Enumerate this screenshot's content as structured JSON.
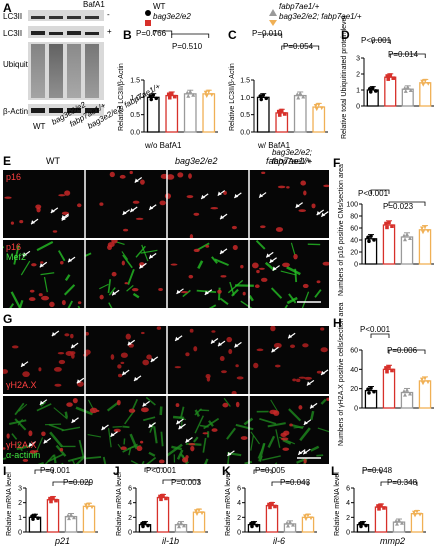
{
  "panelA": {
    "label": "A",
    "baf1": "BafA1",
    "minus": "-",
    "plus": "+",
    "lc3_1": "LC3II",
    "lc3_2": "LC3II",
    "ubiquitin": "Ubiquitin",
    "actin": "β-Actin",
    "lanes": [
      "WT",
      "bag3e2/e2",
      "fabp7ae1/+",
      "bag3e2/e2; fabp7ae1/+"
    ]
  },
  "legend": {
    "wt": "WT",
    "bag3": "bag3e2/e2",
    "fabp": "fabp7ae1/+",
    "double": "bag3e2/e2; fabp7ae1/+",
    "colors": {
      "wt": "#000000",
      "bag3": "#d7302a",
      "fabp": "#9a9a9a",
      "double": "#f0b055"
    }
  },
  "panelB": {
    "label": "B",
    "ylabel": "Relative LC3II/β-Actin",
    "p1": "P=0.766",
    "p2": "P=0.510",
    "xlabel": "w/o BafA1"
  },
  "panelC": {
    "label": "C",
    "ylabel": "Relative LC3II/β-Actin",
    "p1": "P=0.010",
    "p2": "P=0.054",
    "xlabel": "w/ BafA1"
  },
  "panelD": {
    "label": "D",
    "ylabel": "Relative total Ubiquitinated protein level",
    "p1": "P<0.001",
    "p2": "P=0.014"
  },
  "panelE": {
    "label": "E",
    "cols": [
      "WT",
      "bag3e2/e2",
      "fabp7ae1/+",
      "bag3e2/e2; fabp7ae1/+"
    ],
    "row1": "p16",
    "row2a": "p16",
    "row2b": "Mef2"
  },
  "panelF": {
    "label": "F",
    "ylabel": "Numbers of p16 positive CMs/section area",
    "p1": "P<0.001",
    "p2": "P=0.023"
  },
  "panelG": {
    "label": "G",
    "row1": "γH2A.X",
    "row2a": "γH2A.X",
    "row2b": "α-actinin"
  },
  "panelH": {
    "label": "H",
    "ylabel": "Numbers of γH2A.X positive cells/section area",
    "p1": "P<0.001",
    "p2": "P=0.006"
  },
  "panelI": {
    "label": "I",
    "ylabel": "Relative mRNA level",
    "gene": "p21",
    "p1": "P=0.001",
    "p2": "P=0.029"
  },
  "panelJ": {
    "label": "J",
    "ylabel": "Relative mRNA level",
    "gene": "il-1b",
    "p1": "P<0.001",
    "p2": "P=0.003"
  },
  "panelK": {
    "label": "K",
    "ylabel": "Relative mRNA level",
    "gene": "il-6",
    "p1": "P=0.005",
    "p2": "P=0.043"
  },
  "panelL": {
    "label": "L",
    "ylabel": "Relative mRNA level",
    "gene": "mmp2",
    "p1": "P=0.048",
    "p2": "P=0.348"
  },
  "chart_data": [
    {
      "id": "B",
      "type": "bar",
      "categories": [
        "WT",
        "bag3e2/e2",
        "fabp7ae1/+",
        "bag3e2/e2; fabp7ae1/+"
      ],
      "values": [
        1.0,
        1.05,
        1.1,
        1.1
      ],
      "ylim": [
        0,
        1.5
      ],
      "yticks": [
        "0.0",
        "0.5",
        "1.0",
        "1.5"
      ]
    },
    {
      "id": "C",
      "type": "bar",
      "categories": [
        "WT",
        "bag3e2/e2",
        "fabp7ae1/+",
        "bag3e2/e2; fabp7ae1/+"
      ],
      "values": [
        1.0,
        0.55,
        1.05,
        0.72
      ],
      "ylim": [
        0,
        1.5
      ],
      "yticks": [
        "0.0",
        "0.5",
        "1.0",
        "1.5"
      ]
    },
    {
      "id": "D",
      "type": "bar",
      "categories": [
        "WT",
        "bag3e2/e2",
        "fabp7ae1/+",
        "bag3e2/e2; fabp7ae1/+"
      ],
      "values": [
        1.0,
        1.8,
        1.05,
        1.45
      ],
      "ylim": [
        0,
        3
      ],
      "yticks": [
        "0",
        "1",
        "2",
        "3"
      ]
    },
    {
      "id": "F",
      "type": "bar",
      "categories": [
        "WT",
        "bag3e2/e2",
        "fabp7ae1/+",
        "bag3e2/e2; fabp7ae1/+"
      ],
      "values": [
        42,
        65,
        45,
        57
      ],
      "ylim": [
        0,
        100
      ],
      "yticks": [
        "0",
        "20",
        "40",
        "60",
        "80",
        "100"
      ]
    },
    {
      "id": "H",
      "type": "bar",
      "categories": [
        "WT",
        "bag3e2/e2",
        "fabp7ae1/+",
        "bag3e2/e2; fabp7ae1/+"
      ],
      "values": [
        18,
        40,
        16,
        28
      ],
      "ylim": [
        0,
        60
      ],
      "yticks": [
        "0",
        "20",
        "40",
        "60"
      ]
    },
    {
      "id": "I",
      "type": "bar",
      "categories": [
        "WT",
        "bag3e2/e2",
        "fabp7ae1/+",
        "bag3e2/e2; fabp7ae1/+"
      ],
      "values": [
        1.0,
        2.2,
        1.05,
        1.75
      ],
      "ylim": [
        0,
        3
      ],
      "yticks": [
        "0",
        "1",
        "2",
        "3"
      ]
    },
    {
      "id": "J",
      "type": "bar",
      "categories": [
        "WT",
        "bag3e2/e2",
        "fabp7ae1/+",
        "bag3e2/e2; fabp7ae1/+"
      ],
      "values": [
        1.0,
        4.7,
        1.0,
        2.7
      ],
      "ylim": [
        0,
        6
      ],
      "yticks": [
        "0",
        "2",
        "4",
        "6"
      ]
    },
    {
      "id": "K",
      "type": "bar",
      "categories": [
        "WT",
        "bag3e2/e2",
        "fabp7ae1/+",
        "bag3e2/e2; fabp7ae1/+"
      ],
      "values": [
        1.0,
        3.6,
        1.1,
        2.0
      ],
      "ylim": [
        0,
        6
      ],
      "yticks": [
        "0",
        "2",
        "4",
        "6"
      ]
    },
    {
      "id": "L",
      "type": "bar",
      "categories": [
        "WT",
        "bag3e2/e2",
        "fabp7ae1/+",
        "bag3e2/e2; fabp7ae1/+"
      ],
      "values": [
        1.0,
        3.4,
        1.35,
        2.5
      ],
      "ylim": [
        0,
        6
      ],
      "yticks": [
        "0",
        "2",
        "4",
        "6"
      ]
    }
  ]
}
